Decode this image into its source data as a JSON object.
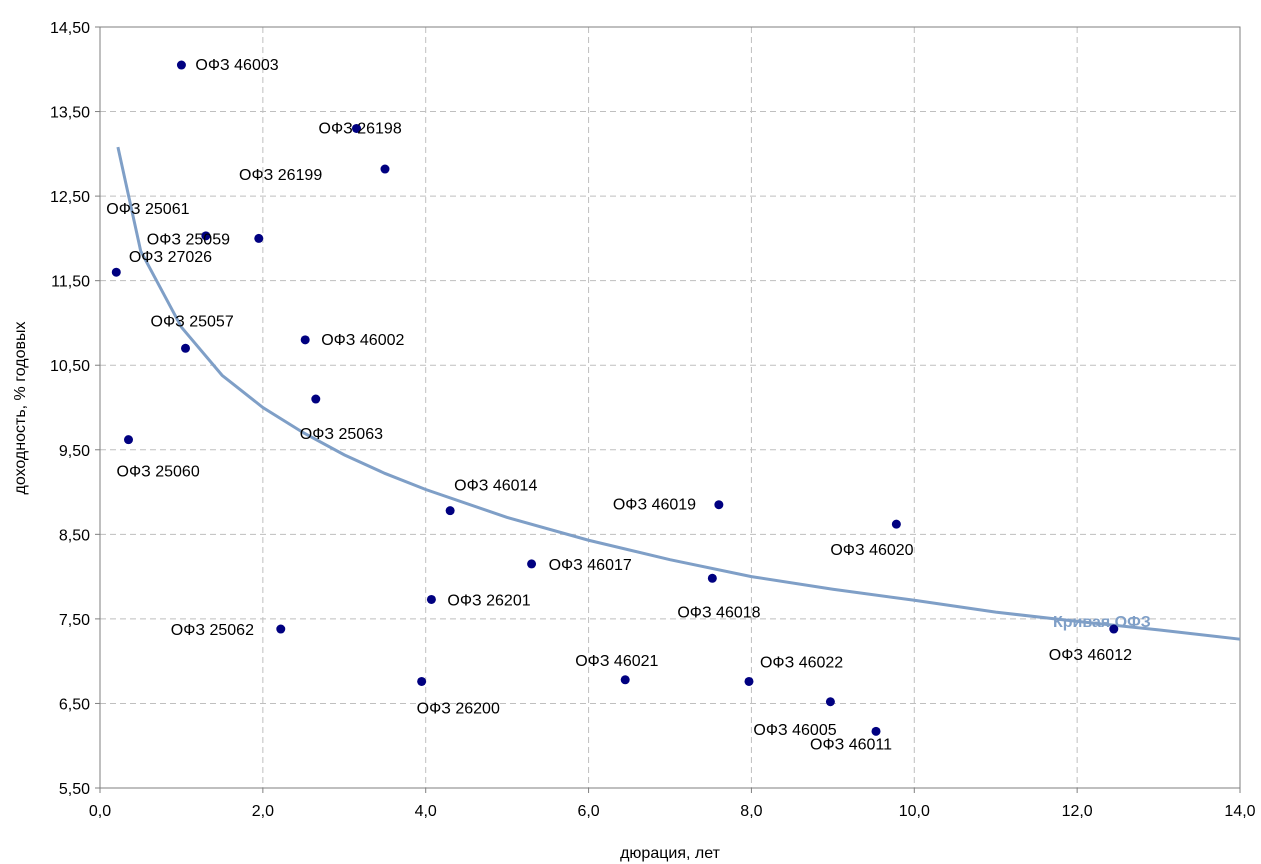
{
  "chart_data": {
    "type": "scatter",
    "xlabel": "дюрация, лет",
    "ylabel": "доходность, % годовых",
    "xlim": [
      0,
      14
    ],
    "ylim": [
      5.5,
      14.5
    ],
    "grid": true,
    "x_ticks": [
      "0,0",
      "2,0",
      "4,0",
      "6,0",
      "8,0",
      "10,0",
      "12,0",
      "14,0"
    ],
    "y_ticks": [
      "5,50",
      "6,50",
      "7,50",
      "8,50",
      "9,50",
      "10,50",
      "11,50",
      "12,50",
      "13,50",
      "14,50"
    ],
    "marker_color": "#000080",
    "curve_color": "#7f9fc7",
    "points": [
      {
        "label": "ОФЗ 46003",
        "x": 1.0,
        "y": 14.05
      },
      {
        "label": "ОФЗ 26198",
        "x": 3.15,
        "y": 13.3
      },
      {
        "label": "ОФЗ 26199",
        "x": 3.5,
        "y": 12.82
      },
      {
        "label": "ОФЗ 25061",
        "x": 0.2,
        "y": 11.6
      },
      {
        "label": "ОФЗ 25059",
        "x": 1.95,
        "y": 12.0
      },
      {
        "label": "ОФЗ 27026",
        "x": 1.3,
        "y": 12.03
      },
      {
        "label": "ОФЗ 25057",
        "x": 1.05,
        "y": 10.7
      },
      {
        "label": "ОФЗ 46002",
        "x": 2.52,
        "y": 10.8
      },
      {
        "label": "ОФЗ 25063",
        "x": 2.65,
        "y": 10.1
      },
      {
        "label": "ОФЗ 25060",
        "x": 0.35,
        "y": 9.62
      },
      {
        "label": "ОФЗ 46014",
        "x": 4.3,
        "y": 8.78
      },
      {
        "label": "ОФЗ 46019",
        "x": 7.6,
        "y": 8.85
      },
      {
        "label": "ОФЗ 46020",
        "x": 9.78,
        "y": 8.62
      },
      {
        "label": "ОФЗ 46017",
        "x": 5.3,
        "y": 8.15
      },
      {
        "label": "ОФЗ 46018",
        "x": 7.52,
        "y": 7.98
      },
      {
        "label": "ОФЗ 26201",
        "x": 4.07,
        "y": 7.73
      },
      {
        "label": "ОФЗ 25062",
        "x": 2.22,
        "y": 7.38
      },
      {
        "label": "ОФЗ 46012",
        "x": 12.45,
        "y": 7.38
      },
      {
        "label": "ОФЗ 46021",
        "x": 6.45,
        "y": 6.78
      },
      {
        "label": "ОФЗ 46022",
        "x": 7.97,
        "y": 6.76
      },
      {
        "label": "ОФЗ 26200",
        "x": 3.95,
        "y": 6.76
      },
      {
        "label": "ОФЗ 46005",
        "x": 8.97,
        "y": 6.52
      },
      {
        "label": "ОФЗ 46011",
        "x": 9.53,
        "y": 6.17
      }
    ],
    "curve": {
      "name": "Кривая ОФЗ",
      "x": [
        0.22,
        0.5,
        1.0,
        1.5,
        2.0,
        2.5,
        3.0,
        3.5,
        4.0,
        5.0,
        6.0,
        7.0,
        8.0,
        9.0,
        10.0,
        11.0,
        12.0,
        13.0,
        14.0
      ],
      "y": [
        13.08,
        11.85,
        10.95,
        10.38,
        10.0,
        9.7,
        9.44,
        9.22,
        9.03,
        8.7,
        8.43,
        8.2,
        8.0,
        7.85,
        7.72,
        7.58,
        7.47,
        7.37,
        7.26
      ]
    }
  }
}
